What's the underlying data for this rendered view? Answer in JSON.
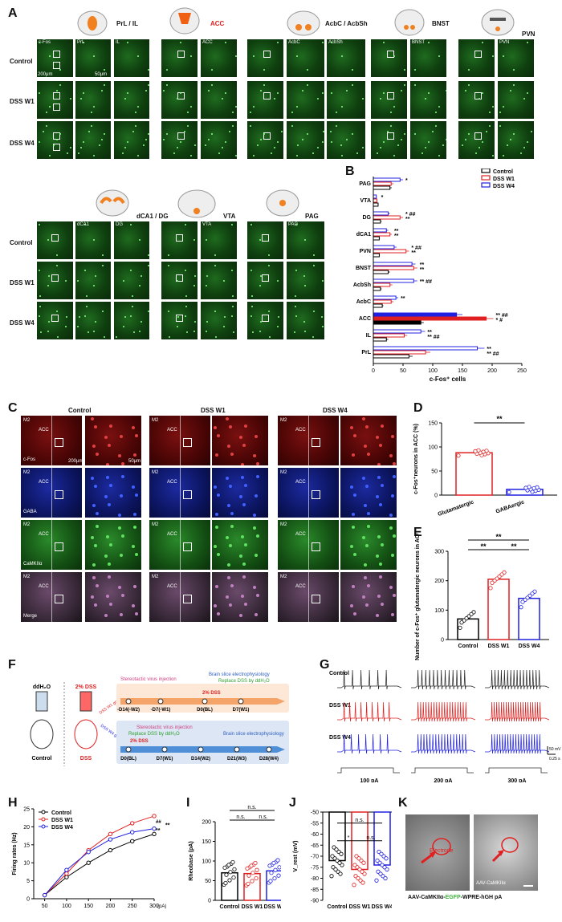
{
  "panels": {
    "A": "A",
    "B": "B",
    "C": "C",
    "D": "D",
    "E": "E",
    "F": "F",
    "G": "G",
    "H": "H",
    "I": "I",
    "J": "J",
    "K": "K"
  },
  "panelA": {
    "rows": [
      "Control",
      "DSS W1",
      "DSS W4"
    ],
    "region_titles": [
      "PrL / IL",
      "ACC",
      "AcbC / AcbSh",
      "BNST",
      "PVN"
    ],
    "sub_labels": [
      "c-Fos",
      "PrL",
      "IL",
      "ACC",
      "AcbC",
      "AcbSh",
      "BNST",
      "PVN"
    ],
    "scale_labels": [
      "200μm",
      "50μm"
    ],
    "bottom_titles": [
      "dCA1 / DG",
      "VTA",
      "PAG"
    ],
    "bottom_sub_labels": [
      "dCA1",
      "DG",
      "VTA",
      "PAG"
    ]
  },
  "panelB": {
    "categories": [
      "PAG",
      "VTA",
      "DG",
      "dCA1",
      "PVN",
      "BNST",
      "AcbSh",
      "AcbC",
      "ACC",
      "IL",
      "PrL"
    ],
    "series": [
      {
        "name": "Control",
        "color": "#000000",
        "values": [
          28,
          8,
          12,
          10,
          10,
          25,
          12,
          15,
          80,
          22,
          60
        ],
        "err": [
          3,
          1,
          2,
          1,
          1,
          3,
          2,
          2,
          5,
          3,
          6
        ]
      },
      {
        "name": "DSS W1",
        "color": "#e02020",
        "values": [
          30,
          6,
          45,
          28,
          55,
          68,
          28,
          30,
          190,
          52,
          88
        ],
        "err": [
          4,
          1,
          5,
          3,
          5,
          6,
          4,
          4,
          12,
          5,
          8
        ]
      },
      {
        "name": "DSS W4",
        "color": "#2020e0",
        "values": [
          45,
          5,
          25,
          22,
          35,
          65,
          68,
          38,
          140,
          80,
          175
        ],
        "err": [
          5,
          1,
          3,
          3,
          4,
          6,
          6,
          4,
          10,
          7,
          12
        ]
      }
    ],
    "annotations": [
      "*",
      "*",
      "* ##",
      "**",
      "**",
      "**",
      "* ##",
      "**",
      "**",
      "**",
      "** ##",
      "**",
      "** ##",
      "* #",
      "**",
      "** ##",
      "**",
      "** ##"
    ],
    "xlabel": "c-Fos⁺ cells",
    "xticks": [
      "0",
      "50",
      "100",
      "150",
      "200",
      "250"
    ],
    "xlim": [
      0,
      250
    ]
  },
  "panelC": {
    "columns": [
      "Control",
      "DSS W1",
      "DSS W4"
    ],
    "rows": [
      "c-Fos",
      "GABA",
      "CaMKIIα",
      "Merge"
    ],
    "region_labels": [
      "M2",
      "ACC"
    ],
    "scale_labels": [
      "200μm",
      "50μm"
    ]
  },
  "panelD": {
    "type": "bar",
    "categories": [
      "Glutamatergic",
      "GABAergic"
    ],
    "values": [
      88,
      12
    ],
    "colors": [
      "#e02020",
      "#2020e0"
    ],
    "ylabel": "c-Fos⁺neurons in ACC (%)",
    "yticks": [
      "0",
      "50",
      "100",
      "150"
    ],
    "ylim": [
      0,
      150
    ],
    "sig": "**"
  },
  "panelE": {
    "type": "bar",
    "categories": [
      "Control",
      "DSS W1",
      "DSS W4"
    ],
    "values": [
      70,
      205,
      140
    ],
    "colors": [
      "#000000",
      "#e02020",
      "#2020e0"
    ],
    "ylabel": "Number of c-Fos⁺ glutamatergic neurons in ACC",
    "yticks": [
      "0",
      "100",
      "200",
      "300"
    ],
    "ylim": [
      0,
      300
    ],
    "sig": [
      "**",
      "**",
      "**"
    ]
  },
  "panelF": {
    "left_labels": [
      "ddH₂O",
      "2% DSS",
      "Control",
      "DSS"
    ],
    "group_labels": [
      "DSS W1 group",
      "DSS W4 group"
    ],
    "top_timeline": {
      "title1": "Stereotactic virus injection",
      "title2": "Brain slice electrophysiology",
      "title3": "Replace DSS by ddH₂O",
      "title4": "2% DSS",
      "ticks": [
        "-D14(-W2)",
        "-D7(-W1)",
        "D0(BL)",
        "D7(W1)"
      ]
    },
    "bottom_timeline": {
      "title1": "Stereotactic virus injection",
      "title2": "Replace DSS by ddH₂O",
      "title3": "2% DSS",
      "title4": "Brain slice electrophysiology",
      "ticks": [
        "D0(BL)",
        "D7(W1)",
        "D14(W2)",
        "D21(W3)",
        "D28(W4)"
      ]
    }
  },
  "panelG": {
    "rows": [
      "Control",
      "DSS W1",
      "DSS W4"
    ],
    "currents": [
      "100 pA",
      "200 pA",
      "300 pA"
    ],
    "scale": [
      "50 mV",
      "0.25 s"
    ],
    "colors": [
      "#222222",
      "#e02020",
      "#2020e0"
    ]
  },
  "panelH": {
    "type": "line",
    "x": [
      50,
      100,
      150,
      200,
      250,
      300
    ],
    "series": [
      {
        "name": "Control",
        "color": "#000000",
        "values": [
          1,
          6,
          10,
          13.5,
          16,
          18
        ]
      },
      {
        "name": "DSS W1",
        "color": "#e02020",
        "values": [
          1,
          7,
          13.5,
          18,
          21,
          23
        ]
      },
      {
        "name": "DSS W4",
        "color": "#2020e0",
        "values": [
          1,
          8,
          13,
          16.5,
          18.5,
          19.5
        ]
      }
    ],
    "ylabel": "Firing rates (Hz)",
    "yticks": [
      "0",
      "5",
      "10",
      "15",
      "20",
      "25"
    ],
    "xticks": [
      "50",
      "100",
      "150",
      "200",
      "250",
      "300"
    ],
    "xunit": "(pA)",
    "ylim": [
      0,
      25
    ],
    "sig": [
      "##",
      "**",
      "**"
    ]
  },
  "panelI": {
    "type": "bar",
    "categories": [
      "Control",
      "DSS W1",
      "DSS W4"
    ],
    "values": [
      70,
      68,
      75
    ],
    "colors": [
      "#000000",
      "#e02020",
      "#2020e0"
    ],
    "ylabel": "Rheobase (pA)",
    "yticks": [
      "0",
      "50",
      "100",
      "150",
      "200"
    ],
    "ylim": [
      0,
      200
    ],
    "sig": [
      "n.s.",
      "n.s.",
      "n.s."
    ]
  },
  "panelJ": {
    "type": "bar",
    "categories": [
      "Control",
      "DSS W1",
      "DSS W4"
    ],
    "values": [
      -72,
      -76,
      -74
    ],
    "colors": [
      "#000000",
      "#e02020",
      "#2020e0"
    ],
    "ylabel": "V_rest (mV)",
    "yticks": [
      "-50",
      "-55",
      "-60",
      "-65",
      "-70",
      "-75",
      "-80",
      "-85",
      "-90"
    ],
    "ylim": [
      -90,
      -50
    ],
    "sig": [
      "n.s.",
      "*",
      "n.s."
    ]
  },
  "panelK": {
    "label_electrode": "Electrode",
    "label_virus": "AAV-CaMKIIα",
    "caption_parts": [
      "AAV-CaMKIIα-",
      "EGFP",
      "-WPRE-hGH pA"
    ]
  }
}
